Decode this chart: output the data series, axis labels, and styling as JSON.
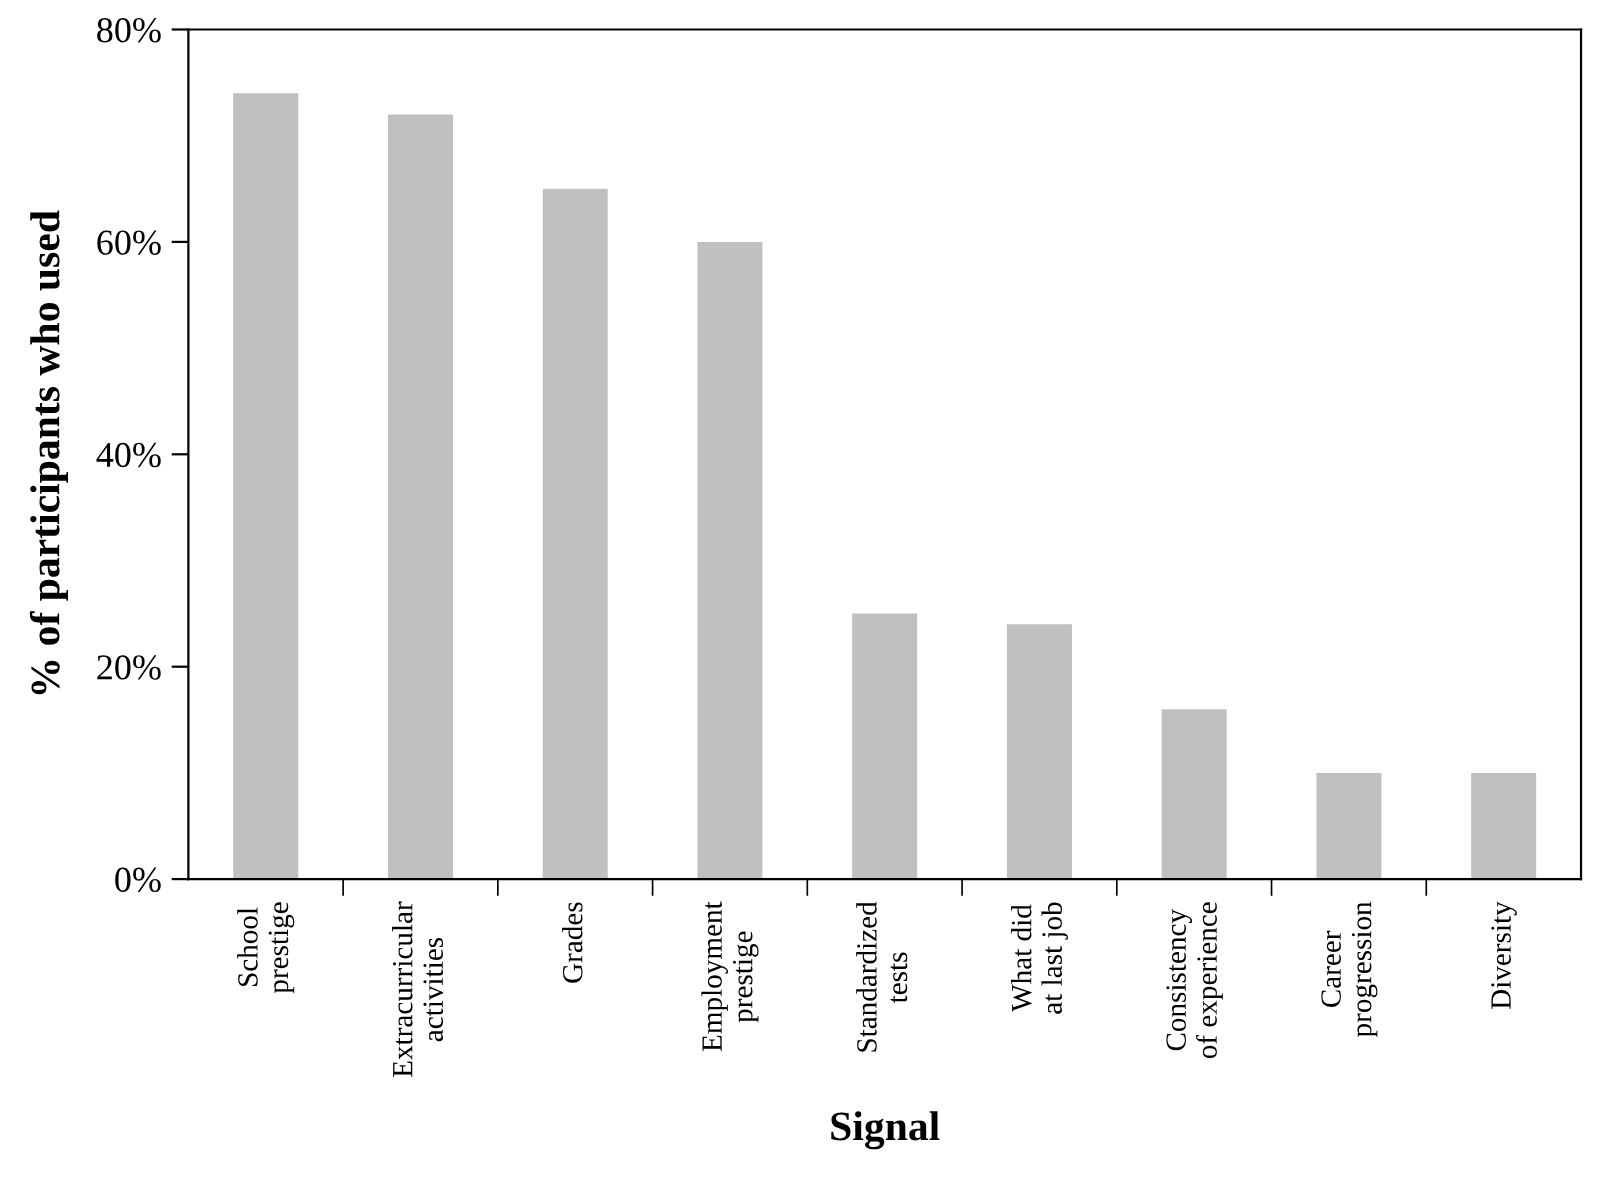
{
  "chart_data": {
    "type": "bar",
    "xlabel": "Signal",
    "ylabel": "% of participants who used",
    "categories": [
      "School\nprestige",
      "Extracurricular\nactivities",
      "Grades",
      "Employment\nprestige",
      "Standardized\ntests",
      "What did\nat last job",
      "Consistency\nof experience",
      "Career\nprogression",
      "Diversity"
    ],
    "series": [
      {
        "color": "#c0c0c0",
        "values": [
          74,
          72,
          65,
          60,
          25,
          24,
          16,
          10,
          10
        ]
      }
    ],
    "ylim": [
      0,
      80
    ],
    "yticks": [
      {
        "value": 0,
        "label": "0%"
      },
      {
        "value": 20,
        "label": "20%"
      },
      {
        "value": 40,
        "label": "40%"
      },
      {
        "value": 60,
        "label": "60%"
      },
      {
        "value": 80,
        "label": "80%"
      }
    ],
    "grid": false,
    "legend": false
  }
}
